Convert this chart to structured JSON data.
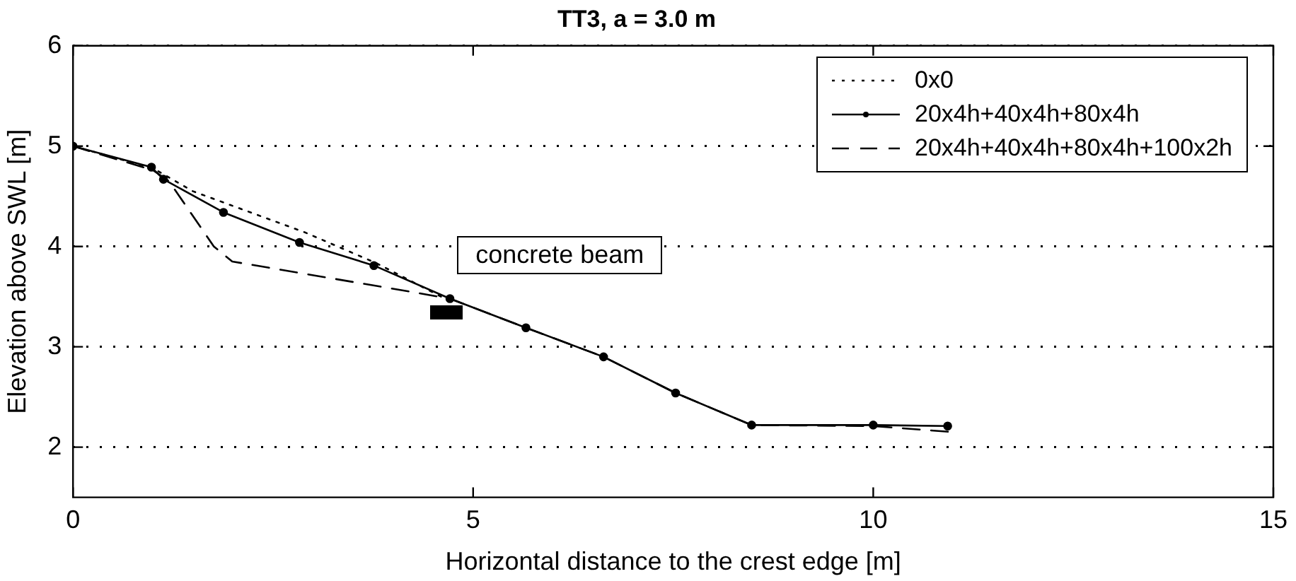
{
  "chart_data": {
    "type": "line",
    "title": "TT3, a = 3.0 m",
    "xlabel": "Horizontal distance to the crest edge [m]",
    "ylabel": "Elevation above SWL [m]",
    "xlim": [
      0,
      15
    ],
    "xticks": [
      0,
      5,
      10,
      15
    ],
    "ylim": [
      1.5,
      6
    ],
    "yticks": [
      2,
      3,
      4,
      5,
      6
    ],
    "grid": "y",
    "legend": "top right",
    "annotations": [
      "concrete beam"
    ],
    "series": [
      {
        "name": "0x0",
        "color": "#000000",
        "line_style": "dotted",
        "marker": "none",
        "x": [
          0,
          1,
          1.5,
          2.9,
          3.8,
          4.6
        ],
        "values": [
          5,
          4.78,
          4.55,
          4.14,
          3.83,
          3.5
        ]
      },
      {
        "name": "20x4h+40x4h+80x4h",
        "color": "#000000",
        "line_style": "solid",
        "marker": "circle",
        "x": [
          0,
          0.98,
          1.13,
          1.88,
          2.83,
          3.76,
          4.71,
          5.66,
          6.63,
          7.53,
          8.48,
          10,
          10.93
        ],
        "values": [
          5,
          4.79,
          4.67,
          4.34,
          4.04,
          3.81,
          3.48,
          3.19,
          2.9,
          2.54,
          2.22,
          2.22,
          2.21
        ]
      },
      {
        "name": "20x4h+40x4h+80x4h+100x2h",
        "color": "#000000",
        "line_style": "dashed",
        "marker": "none",
        "x": [
          0,
          1,
          1.2,
          1.76,
          1.99,
          4.21,
          4.71,
          5.66,
          6.63,
          7.53,
          8.48,
          10,
          11
        ],
        "values": [
          5,
          4.76,
          4.65,
          4,
          3.85,
          3.55,
          3.48,
          3.19,
          2.9,
          2.54,
          2.22,
          2.21,
          2.15
        ]
      }
    ]
  }
}
